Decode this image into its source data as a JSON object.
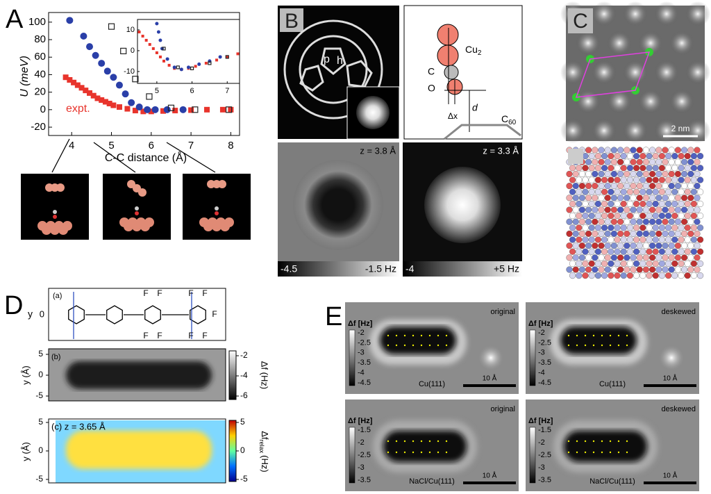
{
  "panel_a": {
    "label": "A",
    "y_label": "U (meV)",
    "x_label": "C-C distance (Å)",
    "xlim": [
      3.42,
      8.22
    ],
    "ylim": [
      -29.5,
      111
    ],
    "xticks": [
      4,
      5,
      6,
      7,
      8
    ],
    "yticks": [
      -20,
      0,
      20,
      40,
      60,
      80,
      100
    ],
    "series": [
      {
        "name": "expt.",
        "color": "#e8342c",
        "marker": "square",
        "x": [
          3.85,
          3.95,
          4.05,
          4.15,
          4.25,
          4.35,
          4.45,
          4.55,
          4.65,
          4.75,
          4.85,
          4.95,
          5.05,
          5.2,
          5.4,
          5.6,
          5.8,
          6.0,
          6.3,
          6.6,
          7.0,
          7.4,
          7.8,
          8.0
        ],
        "values": [
          37,
          34,
          31,
          28,
          25,
          22,
          19,
          16,
          13,
          11,
          9,
          7,
          5,
          3,
          1,
          -1,
          -2,
          -2,
          -1.5,
          -1,
          -0.5,
          0,
          0,
          0
        ]
      },
      {
        "color": "#2a3fa8",
        "marker": "circle",
        "x": [
          3.95,
          4.3,
          4.45,
          4.6,
          4.75,
          4.9,
          5.05,
          5.2,
          5.35,
          5.5,
          5.7,
          5.9,
          6.1,
          6.4,
          6.8
        ],
        "values": [
          102,
          84,
          72,
          62,
          53,
          44,
          37,
          28,
          18,
          8,
          3,
          0,
          0,
          0,
          0
        ]
      },
      {
        "color": "#222222",
        "marker": "open-square",
        "x": [
          5.0,
          5.3,
          5.6,
          5.95,
          6.5,
          7.1,
          7.95
        ],
        "values": [
          95,
          67,
          35,
          15,
          2,
          0,
          0
        ]
      }
    ],
    "inset": {
      "xlim": [
        4.45,
        7.35
      ],
      "ylim": [
        -15.7,
        15
      ],
      "xticks": [
        5,
        6,
        7
      ],
      "yticks": [
        10,
        0,
        -10
      ],
      "series": [
        {
          "color": "#e8342c",
          "marker": "square",
          "x": [
            4.5,
            4.6,
            4.7,
            4.8,
            4.9,
            5.0,
            5.1,
            5.2,
            5.35,
            5.5,
            5.7,
            5.9,
            6.1,
            6.4,
            6.7,
            7.0,
            7.3
          ],
          "values": [
            9,
            7,
            5,
            3,
            1,
            -1,
            -3,
            -5,
            -7,
            -8.5,
            -9,
            -8.5,
            -7.5,
            -6,
            -4.5,
            -3,
            -1.5
          ]
        },
        {
          "color": "#2a3fa8",
          "marker": "circle",
          "x": [
            5.0,
            5.05,
            5.1,
            5.15,
            5.3,
            5.5,
            5.7,
            5.9,
            6.2,
            6.5,
            6.8
          ],
          "values": [
            13,
            9,
            5,
            1,
            -4,
            -8,
            -9,
            -8,
            -6.5,
            -5,
            -3
          ]
        },
        {
          "color": "#222222",
          "marker": "open-square",
          "x": [
            5.2,
            5.6,
            6.0,
            6.5,
            7.0
          ],
          "values": [
            1,
            -8,
            -8.5,
            -6,
            -3
          ]
        }
      ]
    }
  },
  "panel_b": {
    "label": "B",
    "hex_labels": [
      "p",
      "h"
    ],
    "schematic": {
      "cu": "Cu",
      "cu_sub": "2",
      "c": "C",
      "o": "O",
      "dx": "Δx",
      "d": "d",
      "c60": "C",
      "c60_sub": "60"
    },
    "maps": [
      {
        "z": "z = 3.8 Å",
        "min": -4.5,
        "max": "-1.5 Hz"
      },
      {
        "z": "z = 3.3 Å",
        "min": -4,
        "max": "+5 Hz"
      }
    ]
  },
  "panel_c": {
    "label": "C",
    "scale": "2 nm"
  },
  "panel_d": {
    "label": "D",
    "a": {
      "tag": "(a)",
      "y": "y",
      "ytick": 0,
      "fluorine": [
        "F",
        "F",
        "F",
        "F",
        "F",
        "F",
        "F",
        "F",
        "F"
      ]
    },
    "b": {
      "tag": "(b)",
      "y_label": "y (Å)",
      "yticks": [
        5,
        0,
        -5
      ],
      "cbar_ticks": [
        -2,
        -4,
        -6
      ],
      "cbar_label": "Δf (Hz)"
    },
    "c": {
      "tag": "(c) z = 3.65 Å",
      "y_label": "y (Å)",
      "yticks": [
        5,
        0,
        -5
      ],
      "cbar_ticks": [
        5,
        0,
        -5
      ],
      "cbar_label": "Δf",
      "cbar_sub": "relax",
      "cbar_unit": "(Hz)"
    }
  },
  "panel_e": {
    "label": "E",
    "images": [
      {
        "mode": "original",
        "unit": "Δf [Hz]",
        "cbar": [
          -2,
          -2.5,
          -3,
          -3.5,
          -4,
          -4.5
        ],
        "substrate": "Cu(111)",
        "scale": "10 Å"
      },
      {
        "mode": "deskewed",
        "unit": "Δf [Hz]",
        "cbar": [
          -2,
          -2.5,
          -3,
          -3.5,
          -4,
          -4.5
        ],
        "substrate": "Cu(111)",
        "scale": "10 Å"
      },
      {
        "mode": "original",
        "unit": "Δf [Hz]",
        "cbar": [
          -1.5,
          -2,
          -2.5,
          -3,
          -3.5
        ],
        "substrate": "NaCl/Cu(111)",
        "scale": "10 Å"
      },
      {
        "mode": "deskewed",
        "unit": "Δf [Hz]",
        "cbar": [
          -1.5,
          -2,
          -2.5,
          -3,
          -3.5
        ],
        "substrate": "NaCl/Cu(111)",
        "scale": "10 Å"
      }
    ]
  }
}
